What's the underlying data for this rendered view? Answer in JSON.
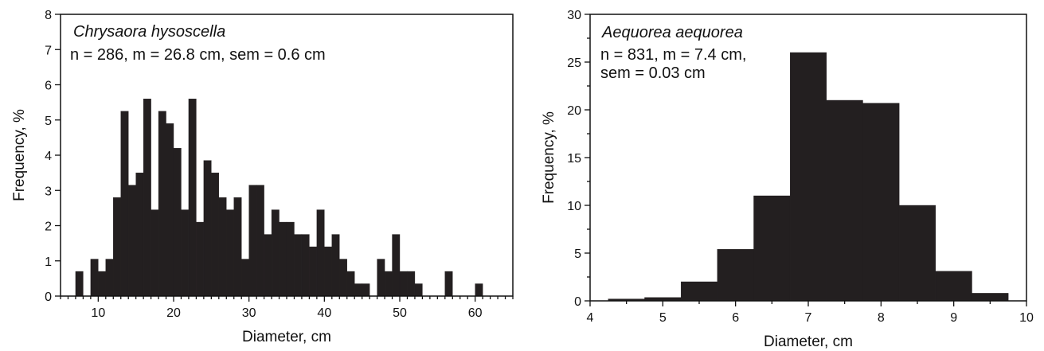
{
  "chart_data": [
    {
      "type": "bar",
      "title": "Chrysaora hysoscella",
      "subtitle_lines": [
        "n = 286, m = 26.8 cm, sem = 0.6 cm"
      ],
      "xlabel": "Diameter, cm",
      "ylabel": "Frequency, %",
      "xlim": [
        5,
        65
      ],
      "ylim": [
        0,
        8
      ],
      "bin_width": 1,
      "xticks": [
        10,
        20,
        30,
        40,
        50,
        60
      ],
      "yticks": [
        0,
        1,
        2,
        3,
        4,
        5,
        6,
        7,
        8
      ],
      "x": [
        7.5,
        9.5,
        10.5,
        11.5,
        12.5,
        13.5,
        14.5,
        15.5,
        16.5,
        17.5,
        18.5,
        19.5,
        20.5,
        21.5,
        22.5,
        23.5,
        24.5,
        25.5,
        26.5,
        27.5,
        28.5,
        29.5,
        30.5,
        31.5,
        32.5,
        33.5,
        34.5,
        35.5,
        36.5,
        37.5,
        38.5,
        39.5,
        40.5,
        41.5,
        42.5,
        43.5,
        44.5,
        45.5,
        47.5,
        48.5,
        49.5,
        50.5,
        51.5,
        52.5,
        56.5,
        60.5
      ],
      "values": [
        0.7,
        1.05,
        0.7,
        1.05,
        2.8,
        5.25,
        3.15,
        3.5,
        5.6,
        2.45,
        5.25,
        4.9,
        4.2,
        2.45,
        5.6,
        2.1,
        3.85,
        3.5,
        2.8,
        2.45,
        2.8,
        1.05,
        3.15,
        3.15,
        1.75,
        2.45,
        2.1,
        2.1,
        1.75,
        1.75,
        1.4,
        2.45,
        1.4,
        1.75,
        1.05,
        0.7,
        0.35,
        0.35,
        1.05,
        0.7,
        1.75,
        0.7,
        0.7,
        0.35,
        0.7,
        0.35
      ]
    },
    {
      "type": "bar",
      "title": "Aequorea aequorea",
      "subtitle_lines": [
        "n = 831, m = 7.4 cm,",
        "sem = 0.03 cm"
      ],
      "xlabel": "Diameter, cm",
      "ylabel": "Frequency, %",
      "xlim": [
        4,
        10
      ],
      "ylim": [
        0,
        30
      ],
      "bin_width": 0.5,
      "xticks": [
        4,
        5,
        6,
        7,
        8,
        9,
        10
      ],
      "yticks": [
        0,
        5,
        10,
        15,
        20,
        25,
        30
      ],
      "x": [
        4.5,
        5.0,
        5.5,
        6.0,
        6.5,
        7.0,
        7.5,
        8.0,
        8.5,
        9.0,
        9.5
      ],
      "values": [
        0.2,
        0.35,
        2.0,
        5.4,
        11.0,
        26.0,
        21.0,
        20.7,
        10.0,
        3.1,
        0.8
      ]
    }
  ]
}
